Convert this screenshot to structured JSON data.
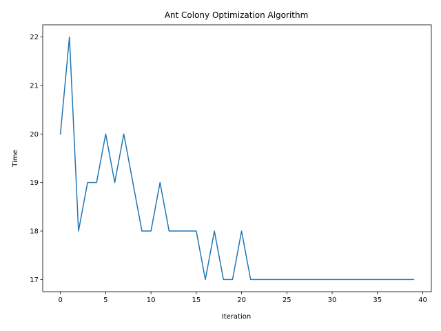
{
  "chart_data": {
    "type": "line",
    "title": "Ant Colony Optimization Algorithm",
    "xlabel": "Iteration",
    "ylabel": "Time",
    "xlim": [
      -1.95,
      40.95
    ],
    "ylim": [
      16.75,
      22.25
    ],
    "xticks": [
      0,
      5,
      10,
      15,
      20,
      25,
      30,
      35,
      40
    ],
    "yticks": [
      17,
      18,
      19,
      20,
      21,
      22
    ],
    "grid": false,
    "legend": "none",
    "line_color": "#1f77b4",
    "series": [
      {
        "x": [
          0,
          1,
          2,
          3,
          4,
          5,
          6,
          7,
          8,
          9,
          10,
          11,
          12,
          13,
          14,
          15,
          16,
          17,
          18,
          19,
          20,
          21,
          22,
          23,
          24,
          25,
          26,
          27,
          28,
          29,
          30,
          31,
          32,
          33,
          34,
          35,
          36,
          37,
          38,
          39
        ],
        "values": [
          20,
          22,
          18,
          19,
          19,
          20,
          19,
          20,
          19,
          18,
          18,
          19,
          18,
          18,
          18,
          18,
          17,
          18,
          17,
          17,
          18,
          17,
          17,
          17,
          17,
          17,
          17,
          17,
          17,
          17,
          17,
          17,
          17,
          17,
          17,
          17,
          17,
          17,
          17,
          17
        ]
      }
    ]
  }
}
